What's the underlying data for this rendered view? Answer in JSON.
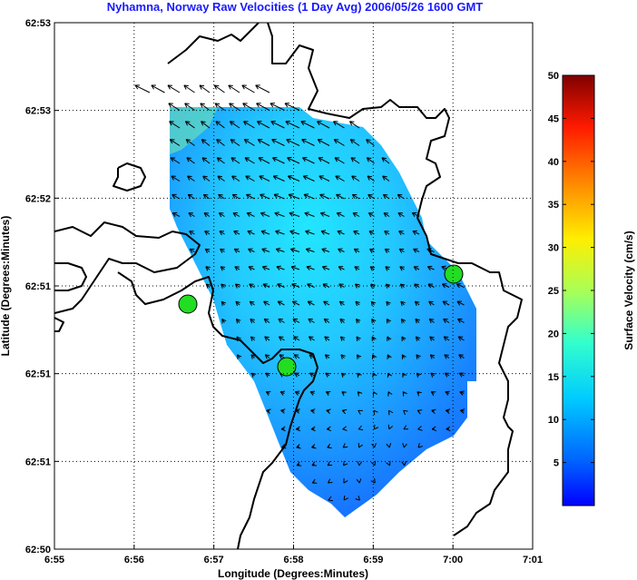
{
  "chart_data": {
    "type": "heatmap",
    "title": "Nyhamna, Norway Raw Velocities (1 Day Avg) 2006/05/26 1600 GMT",
    "xlabel": "Longitude (Degrees:Minutes)",
    "ylabel": "Latitude (Degrees:Minutes)",
    "x_tick_labels": [
      "6:55",
      "6:56",
      "6:57",
      "6:58",
      "6:59",
      "7:00",
      "7:01"
    ],
    "y_tick_labels": [
      "62:50",
      "62:51",
      "62:51",
      "62:51",
      "62:52",
      "62:53",
      "62:53"
    ],
    "colorbar": {
      "label": "Surface Velocity (cm/s)",
      "ticks": [
        5,
        10,
        15,
        20,
        25,
        30,
        35,
        40,
        45,
        50
      ],
      "range": [
        0,
        50
      ],
      "colormap": "jet"
    },
    "grid": true,
    "sites": [
      {
        "lon": 6.945,
        "lat": 62.843
      },
      {
        "lon": 6.965,
        "lat": 62.835
      },
      {
        "lon": 7.0,
        "lat": 62.847
      }
    ],
    "colors": {
      "title": "#1a1aff",
      "site_fill": "#22dd22",
      "coastline": "#000000"
    }
  }
}
